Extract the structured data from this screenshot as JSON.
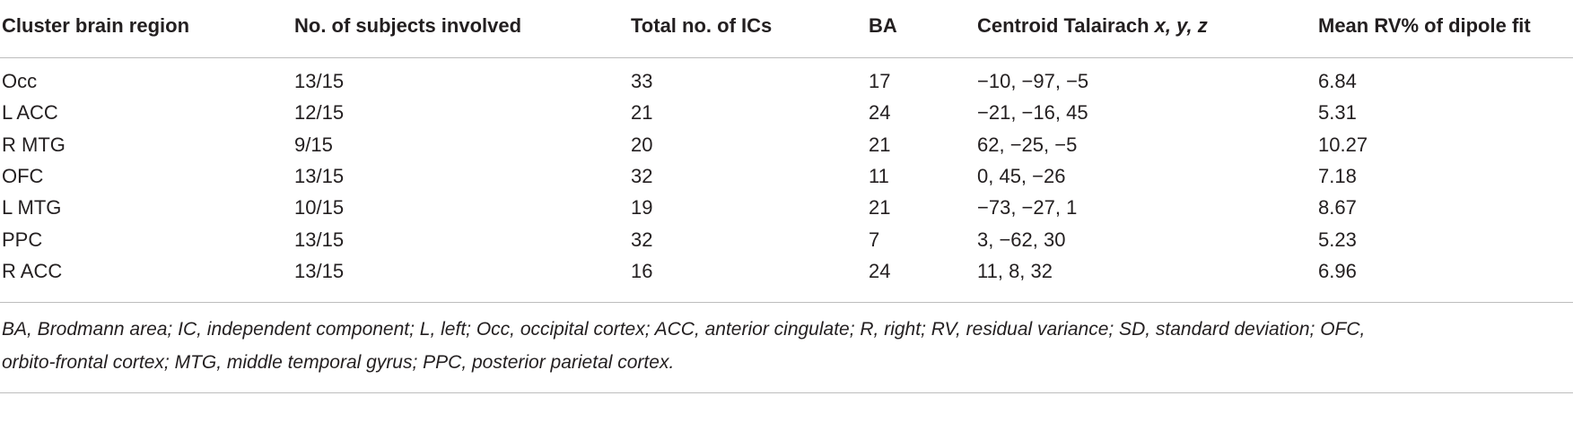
{
  "table": {
    "headers": [
      "Cluster brain region",
      "No. of subjects involved",
      "Total no. of ICs",
      "BA",
      {
        "text": "Centroid Talairach",
        "coords": "x, y, z"
      },
      "Mean RV% of dipole fit"
    ],
    "rows": [
      [
        "Occ",
        "13/15",
        "33",
        "17",
        "−10, −97, −5",
        "6.84"
      ],
      [
        "L ACC",
        "12/15",
        "21",
        "24",
        "−21, −16, 45",
        "5.31"
      ],
      [
        "R MTG",
        "9/15",
        "20",
        "21",
        "62, −25, −5",
        "10.27"
      ],
      [
        "OFC",
        "13/15",
        "32",
        "11",
        "0, 45, −26",
        "7.18"
      ],
      [
        "L MTG",
        "10/15",
        "19",
        "21",
        "−73, −27, 1",
        "8.67"
      ],
      [
        "PPC",
        "13/15",
        "32",
        "7",
        "3, −62, 30",
        "5.23"
      ],
      [
        "R ACC",
        "13/15",
        "16",
        "24",
        "11, 8, 32",
        "6.96"
      ]
    ]
  },
  "footnote": {
    "lines": [
      "BA, Brodmann area; IC, independent component; L, left; Occ, occipital cortex; ACC, anterior cingulate; R, right; RV, residual variance; SD, standard deviation; OFC,",
      "orbito-frontal cortex; MTG, middle temporal gyrus; PPC, posterior parietal cortex."
    ]
  }
}
